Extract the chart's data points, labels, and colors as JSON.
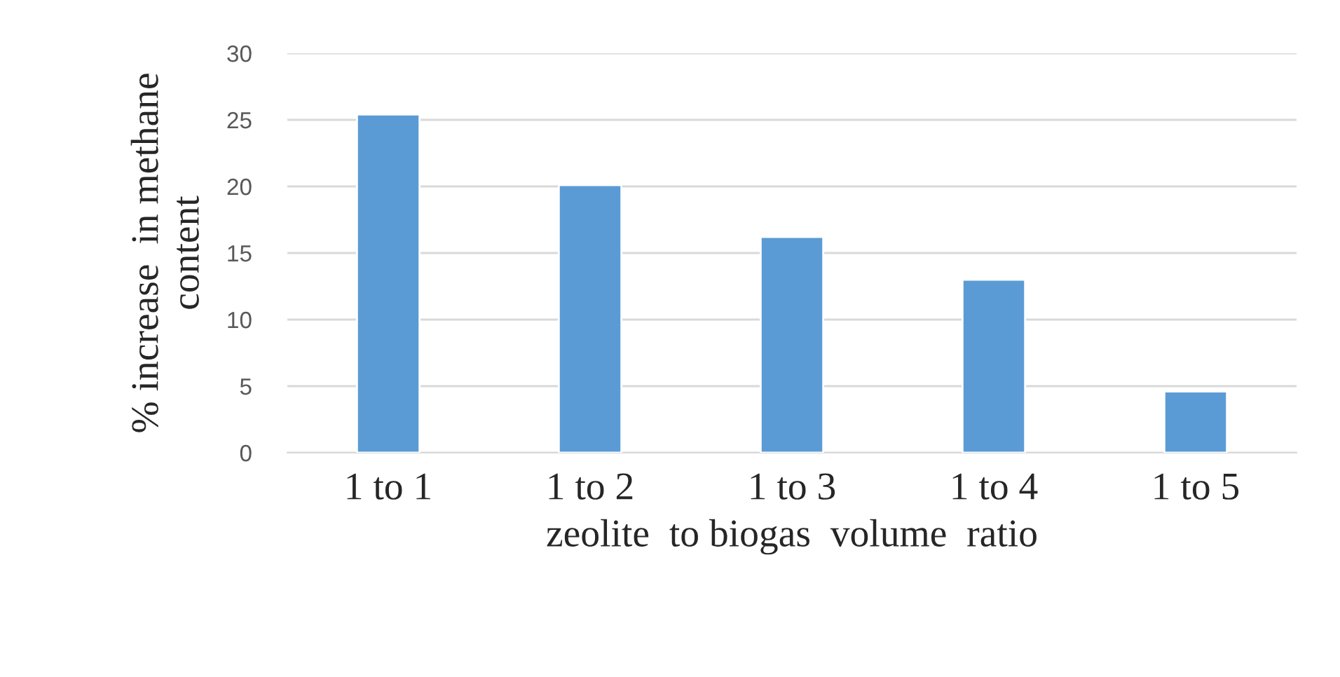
{
  "chart_data": {
    "type": "bar",
    "xlabel": "zeolite  to biogas  volume  ratio",
    "ylabel": "% increase  in methane\ncontent",
    "categories": [
      "1 to 1",
      "1 to 2",
      "1 to 3",
      "1 to 4",
      "1 to 5"
    ],
    "values": [
      25.4,
      20.1,
      16.2,
      13.0,
      4.6
    ],
    "color": "#5b9bd5",
    "ylim": [
      0,
      30
    ],
    "yticks": [
      0,
      5,
      10,
      15,
      20,
      25,
      30
    ],
    "grid": "y"
  }
}
